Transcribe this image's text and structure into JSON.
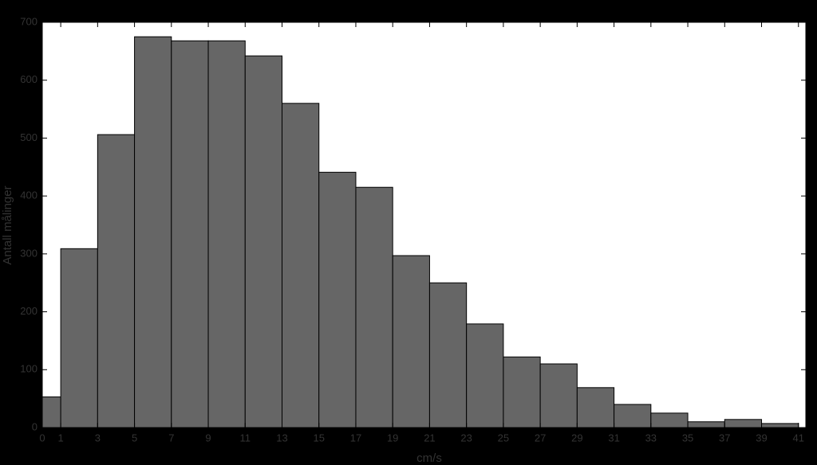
{
  "chart_data": {
    "type": "histogram",
    "x_label": "cm/s",
    "y_label": "Antall målinger",
    "bins": [
      0,
      1,
      3,
      5,
      7,
      9,
      11,
      13,
      15,
      17,
      19,
      21,
      23,
      25,
      27,
      29,
      31,
      33,
      35,
      37,
      39,
      41
    ],
    "values": [
      53,
      309,
      506,
      675,
      668,
      668,
      642,
      560,
      441,
      415,
      297,
      250,
      179,
      122,
      110,
      69,
      40,
      25,
      10,
      14,
      7
    ],
    "color": "#666666",
    "xlim": [
      0,
      41.4
    ],
    "xticks": [
      0,
      1,
      3,
      5,
      7,
      9,
      11,
      13,
      15,
      17,
      19,
      21,
      23,
      25,
      27,
      29,
      31,
      33,
      35,
      37,
      39,
      41
    ],
    "ylim": [
      0,
      700
    ],
    "yticks": [
      0,
      100,
      200,
      300,
      400,
      500,
      600,
      700
    ]
  }
}
